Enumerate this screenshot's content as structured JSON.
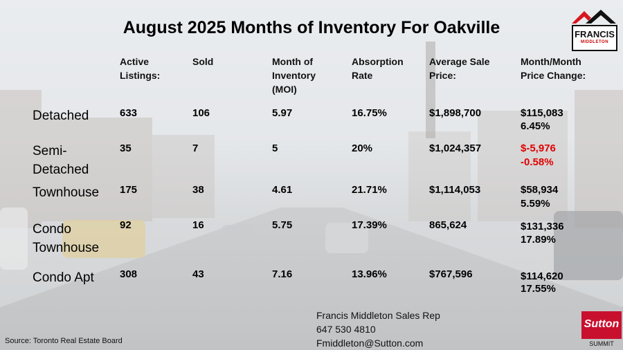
{
  "title": "August 2025 Months of Inventory For Oakville",
  "logo_top": {
    "name": "FRANCIS",
    "sub": "MIDDLETON",
    "colors": {
      "roof_red": "#d7161f",
      "roof_black": "#111111"
    }
  },
  "headers": [
    "Active\nListings:",
    "Sold",
    "Month of\nInventory\n(MOI)",
    "Absorption\nRate",
    "Average Sale\nPrice:",
    "Month/Month\nPrice Change:"
  ],
  "rows": [
    {
      "label": "Detached",
      "active": "633",
      "sold": "106",
      "moi": "5.97",
      "absorption": "16.75%",
      "avg_price": "$1,898,700",
      "change_amount": "$115,083",
      "change_pct": "6.45%",
      "negative": false
    },
    {
      "label": "Semi-\nDetached",
      "active": "35",
      "sold": "7",
      "moi": "5",
      "absorption": "20%",
      "avg_price": "$1,024,357",
      "change_amount": "$-5,976",
      "change_pct": "-0.58%",
      "negative": true
    },
    {
      "label": "Townhouse",
      "active": "175",
      "sold": "38",
      "moi": "4.61",
      "absorption": "21.71%",
      "avg_price": "$1,114,053",
      "change_amount": "$58,934",
      "change_pct": "5.59%",
      "negative": false
    },
    {
      "label": "Condo\nTownhouse",
      "active": "92",
      "sold": "16",
      "moi": "5.75",
      "absorption": "17.39%",
      "avg_price": "865,624",
      "change_amount": "$131,336",
      "change_pct": "17.89%",
      "negative": false
    },
    {
      "label": "Condo Apt",
      "active": "308",
      "sold": "43",
      "moi": "7.16",
      "absorption": "13.96%",
      "avg_price": "$767,596",
      "change_amount": "$114,620",
      "change_pct": "17.55%",
      "negative": false
    }
  ],
  "contact": {
    "line1": "Francis Middleton Sales Rep",
    "line2": "647 530 4810",
    "line3": "Fmiddleton@Sutton.com"
  },
  "source": "Source: Toronto Real Estate Board",
  "logo_bottom": {
    "word": "Sutton",
    "sub": "SUMMIT",
    "color": "#c8102e"
  }
}
